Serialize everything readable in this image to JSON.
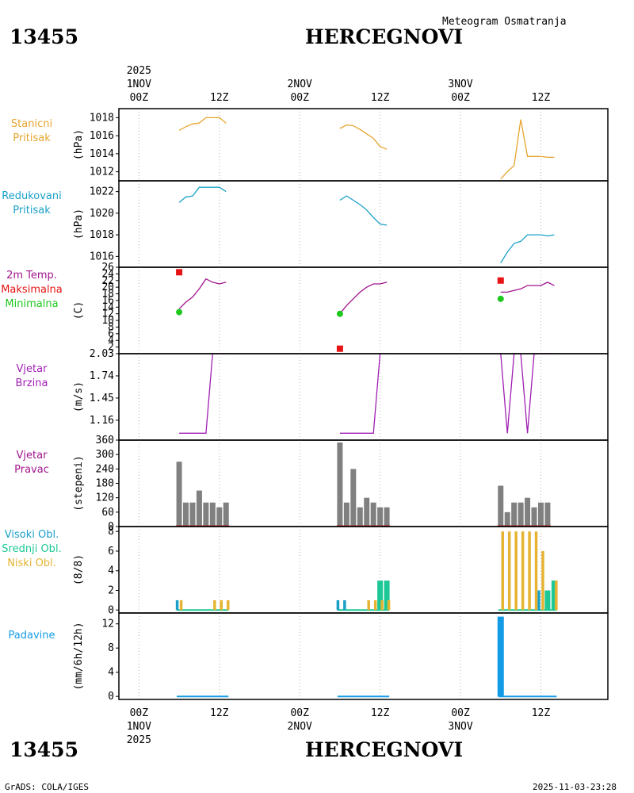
{
  "header": {
    "station_id": "13455",
    "station_name": "HERCEGNOVI",
    "product": "Meteogram Osmatranja",
    "footer_left": "GrADS: COLA/IGES",
    "footer_right": "2025-11-03-23:28"
  },
  "time_axis": {
    "year": "2025",
    "ticks": [
      {
        "h": 0,
        "label": "00Z",
        "day": "1NOV",
        "year": "2025"
      },
      {
        "h": 12,
        "label": "12Z",
        "day": "",
        "year": ""
      },
      {
        "h": 24,
        "label": "00Z",
        "day": "2NOV",
        "year": ""
      },
      {
        "h": 36,
        "label": "12Z",
        "day": "",
        "year": ""
      },
      {
        "h": 48,
        "label": "00Z",
        "day": "3NOV",
        "year": ""
      },
      {
        "h": 60,
        "label": "12Z",
        "day": "",
        "year": ""
      }
    ],
    "range_hours": [
      -3,
      70
    ]
  },
  "colors": {
    "pressure_station": "#e6a52e",
    "pressure_reduced": "#1aa0c8",
    "temperature": "#a0148c",
    "tmax": "#e61414",
    "tmin": "#1ec81e",
    "wind": "#a01eb4",
    "wind_dir": "#808080",
    "high_cloud": "#1aa0c8",
    "mid_cloud": "#1ec896",
    "low_cloud": "#e6b432",
    "precip": "#149be6"
  },
  "chart_data": [
    {
      "type": "line",
      "name": "station-pressure",
      "labels": [
        "Stanicni",
        "Pritisak"
      ],
      "ylabel": "(hPa)",
      "ylim": [
        1011,
        1019
      ],
      "ticks": [
        1012,
        1014,
        1016,
        1018
      ],
      "tick_labels": [
        "1012",
        "1014",
        "1016",
        "1018"
      ],
      "segments": [
        {
          "x": [
            6,
            7,
            8,
            9,
            10,
            11,
            12,
            13
          ],
          "y": [
            1016.6,
            1017.0,
            1017.3,
            1017.4,
            1018.0,
            1018.0,
            1018.0,
            1017.4
          ]
        },
        {
          "x": [
            30,
            31,
            32,
            33,
            34,
            35,
            36,
            37
          ],
          "y": [
            1016.8,
            1017.2,
            1017.1,
            1016.7,
            1016.2,
            1015.7,
            1014.8,
            1014.5
          ]
        },
        {
          "x": [
            54,
            55,
            56,
            57,
            58,
            59,
            60,
            61,
            62
          ],
          "y": [
            1011.2,
            1012.0,
            1012.7,
            1017.8,
            1013.7,
            1013.7,
            1013.7,
            1013.6,
            1013.6
          ]
        }
      ]
    },
    {
      "type": "line",
      "name": "reduced-pressure",
      "labels": [
        "Redukovani",
        "Pritisak"
      ],
      "ylabel": "(hPa)",
      "ylim": [
        1015,
        1023
      ],
      "ticks": [
        1016,
        1018,
        1020,
        1022
      ],
      "tick_labels": [
        "1016",
        "1018",
        "1020",
        "1022"
      ],
      "segments": [
        {
          "x": [
            6,
            7,
            8,
            9,
            10,
            11,
            12,
            13
          ],
          "y": [
            1021.0,
            1021.5,
            1021.6,
            1022.4,
            1022.4,
            1022.4,
            1022.4,
            1022.0
          ]
        },
        {
          "x": [
            30,
            31,
            32,
            33,
            34,
            35,
            36,
            37
          ],
          "y": [
            1021.2,
            1021.6,
            1021.2,
            1020.8,
            1020.3,
            1019.6,
            1019.0,
            1018.9
          ]
        },
        {
          "x": [
            54,
            55,
            56,
            57,
            58,
            59,
            60,
            61,
            62
          ],
          "y": [
            1015.4,
            1016.4,
            1017.2,
            1017.4,
            1018.0,
            1018.0,
            1018.0,
            1017.9,
            1018.0
          ]
        }
      ]
    },
    {
      "type": "line",
      "name": "temperature",
      "labels": [
        "2m Temp.",
        "Maksimalna",
        "Minimalna"
      ],
      "ylabel": "(C)",
      "ylim": [
        0,
        26
      ],
      "ticks": [
        2,
        4,
        6,
        8,
        10,
        12,
        14,
        16,
        18,
        20,
        22,
        24,
        26
      ],
      "tick_labels": [
        "2",
        "4",
        "6",
        "8",
        "10",
        "12",
        "14",
        "16",
        "18",
        "20",
        "22",
        "24",
        "26"
      ],
      "segments": [
        {
          "x": [
            6,
            7,
            8,
            9,
            10,
            11,
            12,
            13
          ],
          "y": [
            13.5,
            15.5,
            17.0,
            19.5,
            22.5,
            21.5,
            21.0,
            21.5
          ]
        },
        {
          "x": [
            30,
            31,
            32,
            33,
            34,
            35,
            36,
            37
          ],
          "y": [
            12.0,
            14.5,
            16.5,
            18.5,
            20.0,
            21.0,
            21.0,
            21.5
          ]
        },
        {
          "x": [
            54,
            55,
            56,
            57,
            58,
            59,
            60,
            61,
            62
          ],
          "y": [
            18.5,
            18.5,
            19.0,
            19.5,
            20.5,
            20.5,
            20.5,
            21.5,
            20.5
          ]
        }
      ],
      "tmax": [
        {
          "x": 6,
          "y": 24.5
        },
        {
          "x": 30,
          "y": 1.5
        },
        {
          "x": 54,
          "y": 22.0
        }
      ],
      "tmin": [
        {
          "x": 6,
          "y": 12.5
        },
        {
          "x": 30,
          "y": 12.0
        },
        {
          "x": 54,
          "y": 16.5
        }
      ]
    },
    {
      "type": "line",
      "name": "wind-speed",
      "labels": [
        "Vjetar",
        "Brzina"
      ],
      "ylabel": "(m/s)",
      "ylim": [
        0.9,
        2.03
      ],
      "ticks": [
        1.16,
        1.45,
        1.74,
        2.03
      ],
      "tick_labels": [
        "1.16",
        "1.45",
        "1.74",
        "2.03"
      ],
      "segments": [
        {
          "x": [
            6,
            7,
            8,
            9,
            10,
            11,
            12,
            13
          ],
          "y": [
            0.99,
            0.99,
            0.99,
            0.99,
            0.99,
            2.03,
            2.03,
            2.03
          ]
        },
        {
          "x": [
            30,
            31,
            32,
            33,
            34,
            35,
            36,
            37
          ],
          "y": [
            0.99,
            0.99,
            0.99,
            0.99,
            0.99,
            0.99,
            2.03,
            2.03
          ]
        },
        {
          "x": [
            54,
            55,
            56,
            57,
            58,
            59,
            60,
            61,
            62
          ],
          "y": [
            2.03,
            0.99,
            2.03,
            2.03,
            0.99,
            2.03,
            2.03,
            2.03,
            2.03
          ]
        }
      ]
    },
    {
      "type": "bar",
      "name": "wind-direction",
      "labels": [
        "Vjetar",
        "Pravac"
      ],
      "ylabel": "(stepeni)",
      "ylim": [
        0,
        360
      ],
      "ticks": [
        0,
        60,
        120,
        180,
        240,
        300,
        360
      ],
      "tick_labels": [
        "0",
        "60",
        "120",
        "180",
        "240",
        "300",
        "360"
      ],
      "bars": [
        {
          "x": 6,
          "v": 270
        },
        {
          "x": 7,
          "v": 100
        },
        {
          "x": 8,
          "v": 100
        },
        {
          "x": 9,
          "v": 150
        },
        {
          "x": 10,
          "v": 100
        },
        {
          "x": 11,
          "v": 100
        },
        {
          "x": 12,
          "v": 80
        },
        {
          "x": 13,
          "v": 100
        },
        {
          "x": 30,
          "v": 350
        },
        {
          "x": 31,
          "v": 100
        },
        {
          "x": 32,
          "v": 240
        },
        {
          "x": 33,
          "v": 80
        },
        {
          "x": 34,
          "v": 120
        },
        {
          "x": 35,
          "v": 100
        },
        {
          "x": 36,
          "v": 80
        },
        {
          "x": 37,
          "v": 80
        },
        {
          "x": 54,
          "v": 170
        },
        {
          "x": 55,
          "v": 60
        },
        {
          "x": 56,
          "v": 100
        },
        {
          "x": 57,
          "v": 100
        },
        {
          "x": 58,
          "v": 120
        },
        {
          "x": 59,
          "v": 80
        },
        {
          "x": 60,
          "v": 100
        },
        {
          "x": 61,
          "v": 100
        }
      ]
    },
    {
      "type": "bar",
      "name": "cloud-cover",
      "labels": [
        "Visoki Obl.",
        "Srednji Obl.",
        "Niski Obl."
      ],
      "ylabel": "(8/8)",
      "ylim": [
        -0.3,
        8.5
      ],
      "ticks": [
        0,
        2,
        4,
        6,
        8
      ],
      "tick_labels": [
        "0",
        "2",
        "4",
        "6",
        "8"
      ],
      "series": [
        {
          "name": "high",
          "bars": [
            {
              "x": 6,
              "v": 1
            },
            {
              "x": 30,
              "v": 1
            },
            {
              "x": 31,
              "v": 1
            },
            {
              "x": 60,
              "v": 2
            }
          ]
        },
        {
          "name": "mid",
          "bars": [
            {
              "x": 36,
              "v": 3
            },
            {
              "x": 37,
              "v": 3
            },
            {
              "x": 61,
              "v": 2
            },
            {
              "x": 62,
              "v": 3
            }
          ]
        },
        {
          "name": "low",
          "bars": [
            {
              "x": 6,
              "v": 1
            },
            {
              "x": 11,
              "v": 1
            },
            {
              "x": 12,
              "v": 1
            },
            {
              "x": 13,
              "v": 1
            },
            {
              "x": 34,
              "v": 1
            },
            {
              "x": 35,
              "v": 1
            },
            {
              "x": 36,
              "v": 1
            },
            {
              "x": 37,
              "v": 1
            },
            {
              "x": 54,
              "v": 8
            },
            {
              "x": 55,
              "v": 8
            },
            {
              "x": 56,
              "v": 8
            },
            {
              "x": 57,
              "v": 8
            },
            {
              "x": 58,
              "v": 8
            },
            {
              "x": 59,
              "v": 8
            },
            {
              "x": 60,
              "v": 6
            },
            {
              "x": 62,
              "v": 3
            }
          ]
        }
      ]
    },
    {
      "type": "bar",
      "name": "precipitation",
      "labels": [
        "Padavine"
      ],
      "ylabel": "(mm/6h/12h)",
      "ylim": [
        -0.5,
        13.8
      ],
      "ticks": [
        0,
        4,
        8,
        12
      ],
      "tick_labels": [
        "0",
        "4",
        "8",
        "12"
      ],
      "bars": [
        {
          "x": 54,
          "v": 13.2
        }
      ],
      "zero_ranges": [
        [
          6,
          13
        ],
        [
          30,
          37
        ],
        [
          54,
          62
        ]
      ]
    }
  ]
}
